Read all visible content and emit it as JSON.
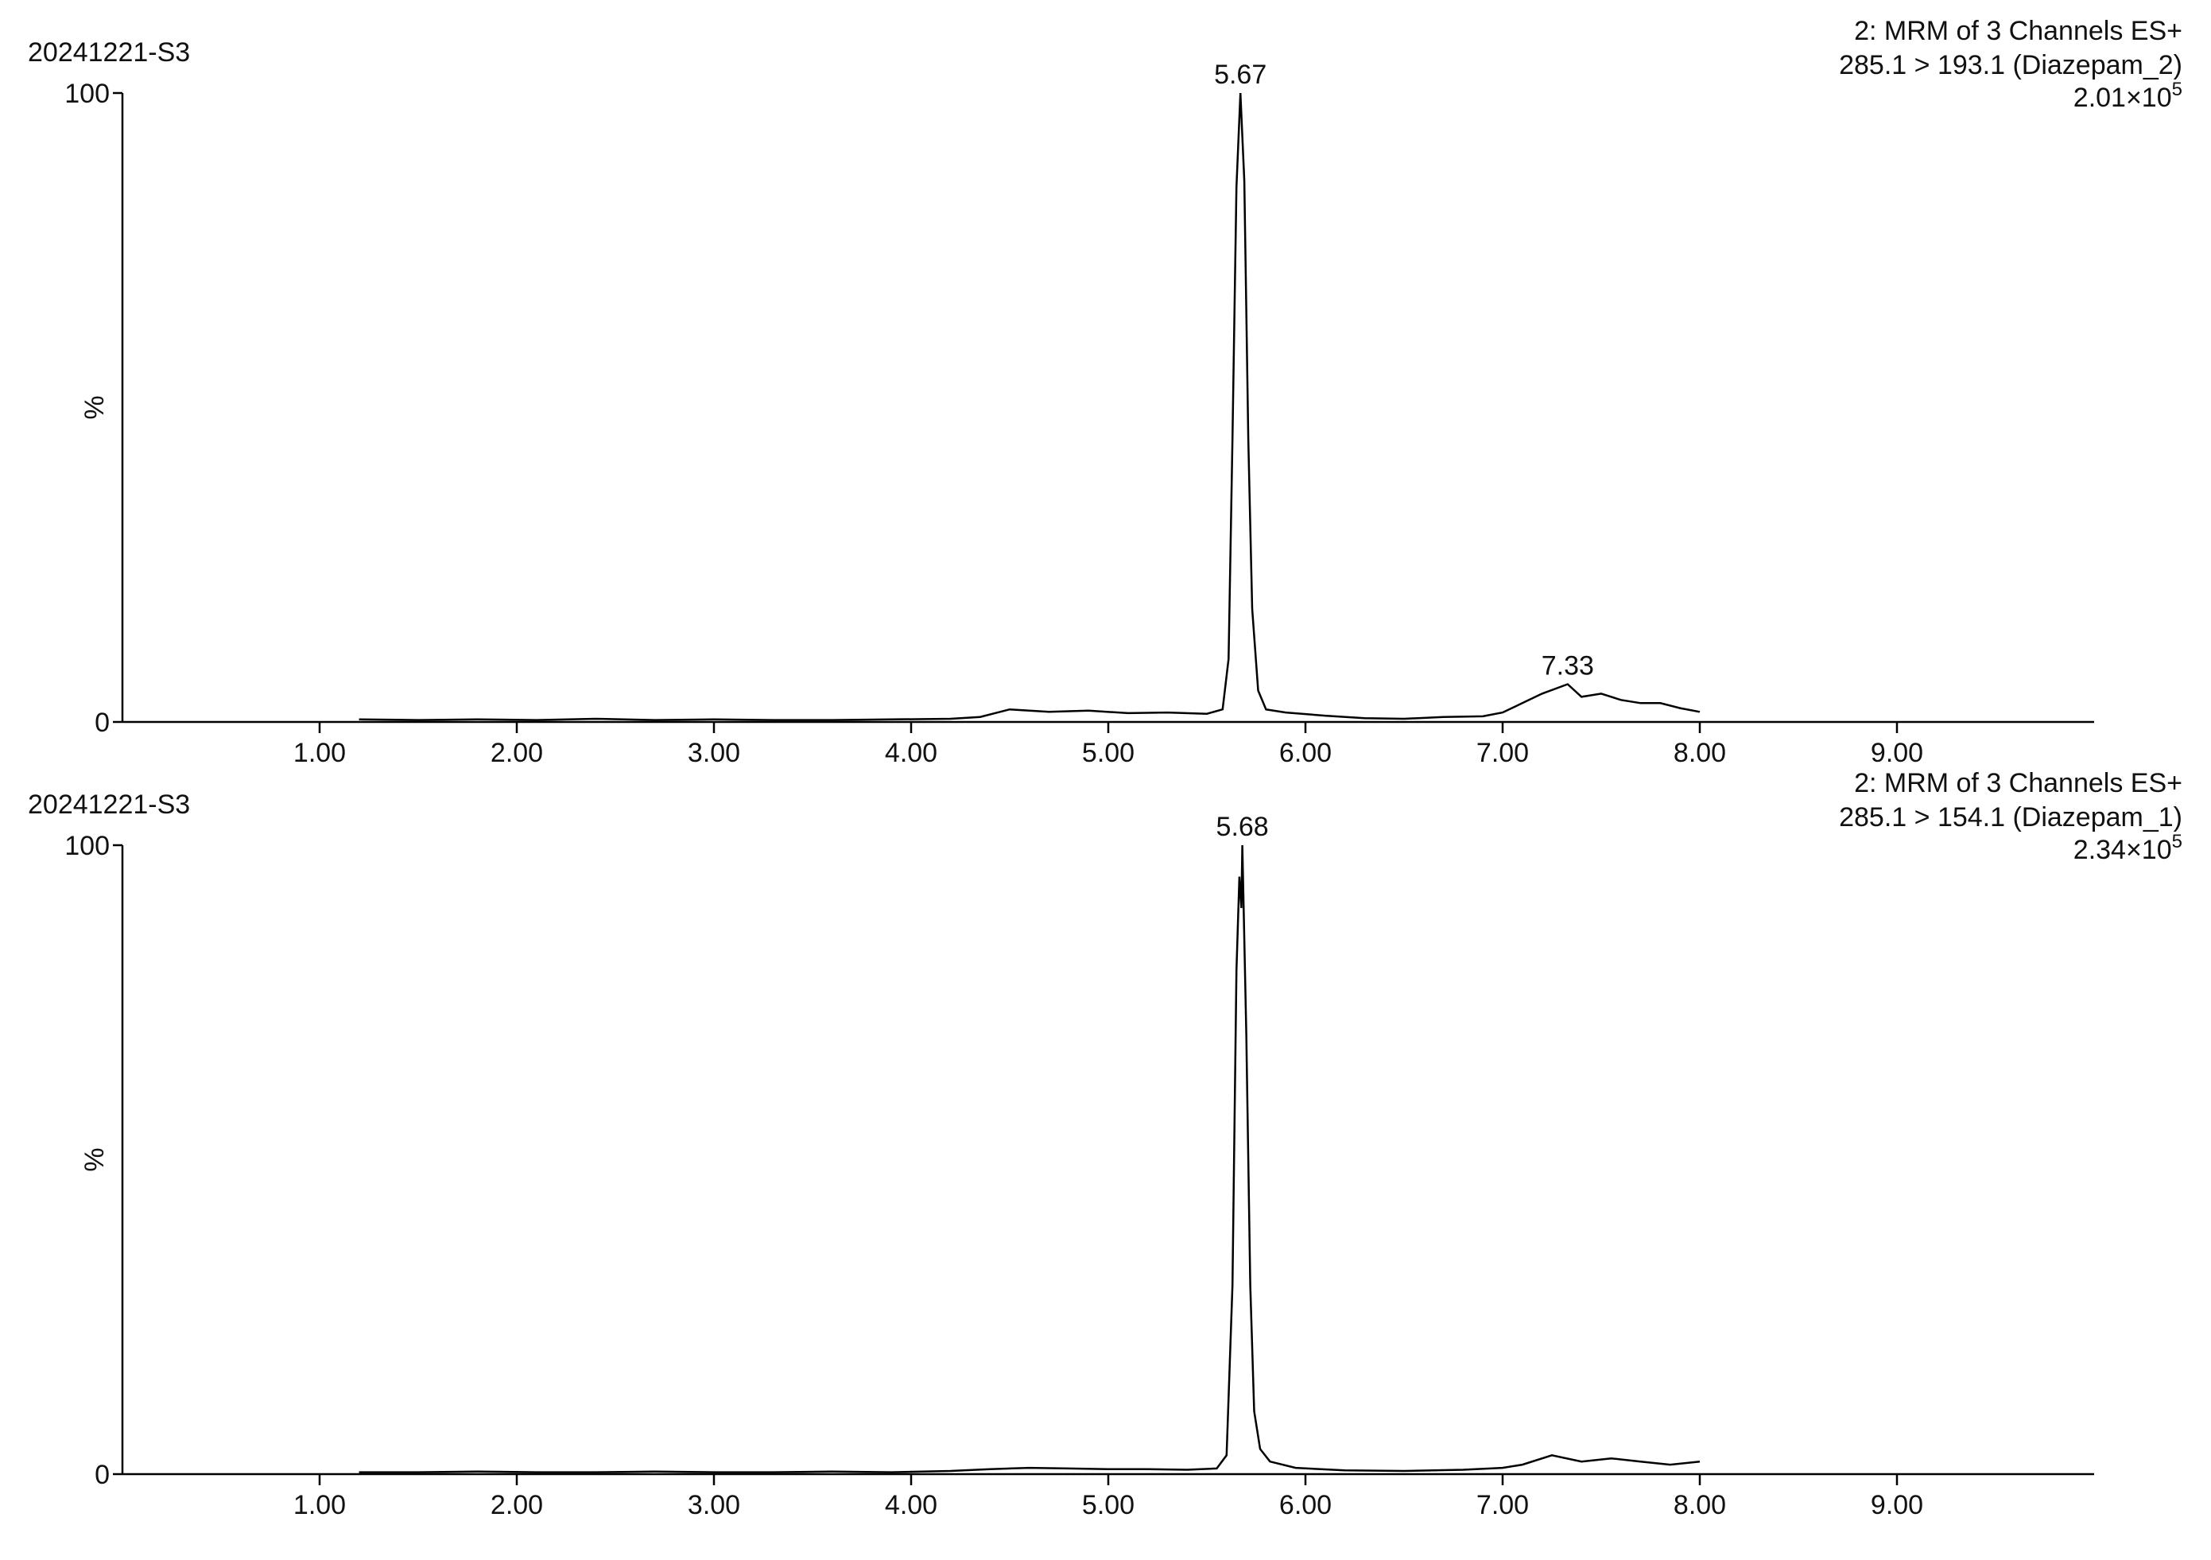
{
  "chart_data": [
    {
      "type": "line",
      "sample": "20241221-S3",
      "title": "2: MRM of 3 Channels ES+",
      "subtitle": "285.1 > 193.1 (Diazepam_2)",
      "intensity_text": "2.01×10",
      "intensity_exponent": "5",
      "ylabel": "%",
      "color": "#9b1f9b",
      "xlim": [
        0,
        10
      ],
      "ylim": [
        0,
        100
      ],
      "xticks": [
        {
          "value": 1,
          "label": "1.00"
        },
        {
          "value": 2,
          "label": "2.00"
        },
        {
          "value": 3,
          "label": "3.00"
        },
        {
          "value": 4,
          "label": "4.00"
        },
        {
          "value": 5,
          "label": "5.00"
        },
        {
          "value": 6,
          "label": "6.00"
        },
        {
          "value": 7,
          "label": "7.00"
        },
        {
          "value": 8,
          "label": "8.00"
        },
        {
          "value": 9,
          "label": "9.00"
        }
      ],
      "yticks": [
        0,
        100
      ],
      "annotations": [
        {
          "x": 5.67,
          "y": 100
        },
        {
          "x": 7.33,
          "y": 6
        }
      ],
      "x": [
        1.2,
        1.5,
        1.8,
        2.1,
        2.4,
        2.7,
        3.0,
        3.3,
        3.6,
        3.9,
        4.2,
        4.35,
        4.5,
        4.7,
        4.9,
        5.1,
        5.3,
        5.5,
        5.58,
        5.61,
        5.63,
        5.65,
        5.67,
        5.69,
        5.71,
        5.73,
        5.76,
        5.8,
        5.9,
        6.1,
        6.3,
        6.5,
        6.7,
        6.9,
        7.0,
        7.1,
        7.2,
        7.33,
        7.4,
        7.5,
        7.6,
        7.7,
        7.8,
        7.9,
        8.0
      ],
      "values": [
        0.4,
        0.3,
        0.4,
        0.3,
        0.5,
        0.3,
        0.4,
        0.3,
        0.3,
        0.4,
        0.5,
        0.8,
        2,
        1.6,
        1.8,
        1.4,
        1.5,
        1.3,
        2,
        10,
        45,
        85,
        100,
        86,
        45,
        18,
        5,
        2,
        1.5,
        1,
        0.6,
        0.5,
        0.8,
        0.9,
        1.5,
        3,
        4.5,
        6,
        4,
        4.5,
        3.5,
        3,
        3,
        2.2,
        1.6
      ]
    },
    {
      "type": "line",
      "sample": "20241221-S3",
      "title": "2: MRM of 3 Channels ES+",
      "subtitle": "285.1 > 154.1 (Diazepam_1)",
      "intensity_text": "2.34×10",
      "intensity_exponent": "5",
      "ylabel": "%",
      "color": "#1f8f1f",
      "xlim": [
        0,
        10
      ],
      "ylim": [
        0,
        100
      ],
      "xticks": [
        {
          "value": 1,
          "label": "1.00"
        },
        {
          "value": 2,
          "label": "2.00"
        },
        {
          "value": 3,
          "label": "3.00"
        },
        {
          "value": 4,
          "label": "4.00"
        },
        {
          "value": 5,
          "label": "5.00"
        },
        {
          "value": 6,
          "label": "6.00"
        },
        {
          "value": 7,
          "label": "7.00"
        },
        {
          "value": 8,
          "label": "8.00"
        },
        {
          "value": 9,
          "label": "9.00"
        }
      ],
      "yticks": [
        0,
        100
      ],
      "annotations": [
        {
          "x": 5.68,
          "y": 100
        }
      ],
      "x": [
        1.2,
        1.5,
        1.8,
        2.1,
        2.4,
        2.7,
        3.0,
        3.3,
        3.6,
        3.9,
        4.2,
        4.4,
        4.6,
        4.8,
        5.0,
        5.2,
        5.4,
        5.55,
        5.6,
        5.63,
        5.65,
        5.665,
        5.675,
        5.68,
        5.7,
        5.72,
        5.74,
        5.77,
        5.82,
        5.95,
        6.2,
        6.5,
        6.8,
        7.0,
        7.1,
        7.25,
        7.4,
        7.55,
        7.7,
        7.85,
        8.0
      ],
      "values": [
        0.3,
        0.3,
        0.4,
        0.3,
        0.3,
        0.4,
        0.3,
        0.3,
        0.4,
        0.3,
        0.5,
        0.8,
        1,
        0.9,
        0.8,
        0.8,
        0.7,
        0.9,
        3,
        30,
        80,
        95,
        90,
        100,
        70,
        30,
        10,
        4,
        2,
        1,
        0.6,
        0.5,
        0.7,
        1,
        1.5,
        3,
        2,
        2.5,
        2,
        1.5,
        2
      ]
    }
  ]
}
